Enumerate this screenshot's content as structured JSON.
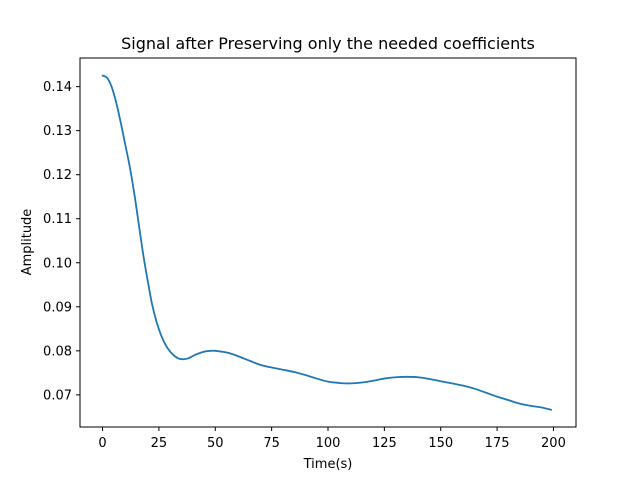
{
  "chart_data": {
    "type": "line",
    "title": "Signal after Preserving only the needed coefficients",
    "xlabel": "Time(s)",
    "ylabel": "Amplitude",
    "xlim": [
      -10,
      210
    ],
    "ylim": [
      0.0627,
      0.1465
    ],
    "xticks": [
      0,
      25,
      50,
      75,
      100,
      125,
      150,
      175,
      200
    ],
    "xtick_labels": [
      "0",
      "25",
      "50",
      "75",
      "100",
      "125",
      "150",
      "175",
      "200"
    ],
    "yticks": [
      0.07,
      0.08,
      0.09,
      0.1,
      0.11,
      0.12,
      0.13,
      0.14
    ],
    "ytick_labels": [
      "0.07",
      "0.08",
      "0.09",
      "0.10",
      "0.11",
      "0.12",
      "0.13",
      "0.14"
    ],
    "grid": false,
    "series": [
      {
        "color": "#1f77b4",
        "x": [
          0,
          2,
          4,
          6,
          8,
          10,
          12,
          14,
          16,
          18,
          20,
          22,
          24,
          26,
          28,
          30,
          32,
          34,
          36,
          38,
          40,
          42,
          45,
          48,
          50,
          53,
          56,
          60,
          65,
          70,
          75,
          80,
          85,
          90,
          95,
          100,
          105,
          110,
          115,
          120,
          125,
          130,
          135,
          140,
          145,
          150,
          155,
          160,
          165,
          170,
          175,
          180,
          185,
          190,
          195,
          199
        ],
        "y": [
          0.1425,
          0.142,
          0.14,
          0.1365,
          0.132,
          0.127,
          0.122,
          0.116,
          0.109,
          0.102,
          0.096,
          0.0905,
          0.0865,
          0.0835,
          0.0813,
          0.0798,
          0.0788,
          0.0782,
          0.0781,
          0.0783,
          0.0788,
          0.0793,
          0.0798,
          0.08,
          0.08,
          0.0798,
          0.0795,
          0.0788,
          0.0778,
          0.0768,
          0.0762,
          0.0757,
          0.0752,
          0.0745,
          0.0737,
          0.073,
          0.0727,
          0.0726,
          0.0728,
          0.0732,
          0.0737,
          0.074,
          0.0741,
          0.074,
          0.0736,
          0.0731,
          0.0726,
          0.0721,
          0.0714,
          0.0705,
          0.0696,
          0.0688,
          0.068,
          0.0675,
          0.0671,
          0.0666
        ]
      }
    ]
  }
}
